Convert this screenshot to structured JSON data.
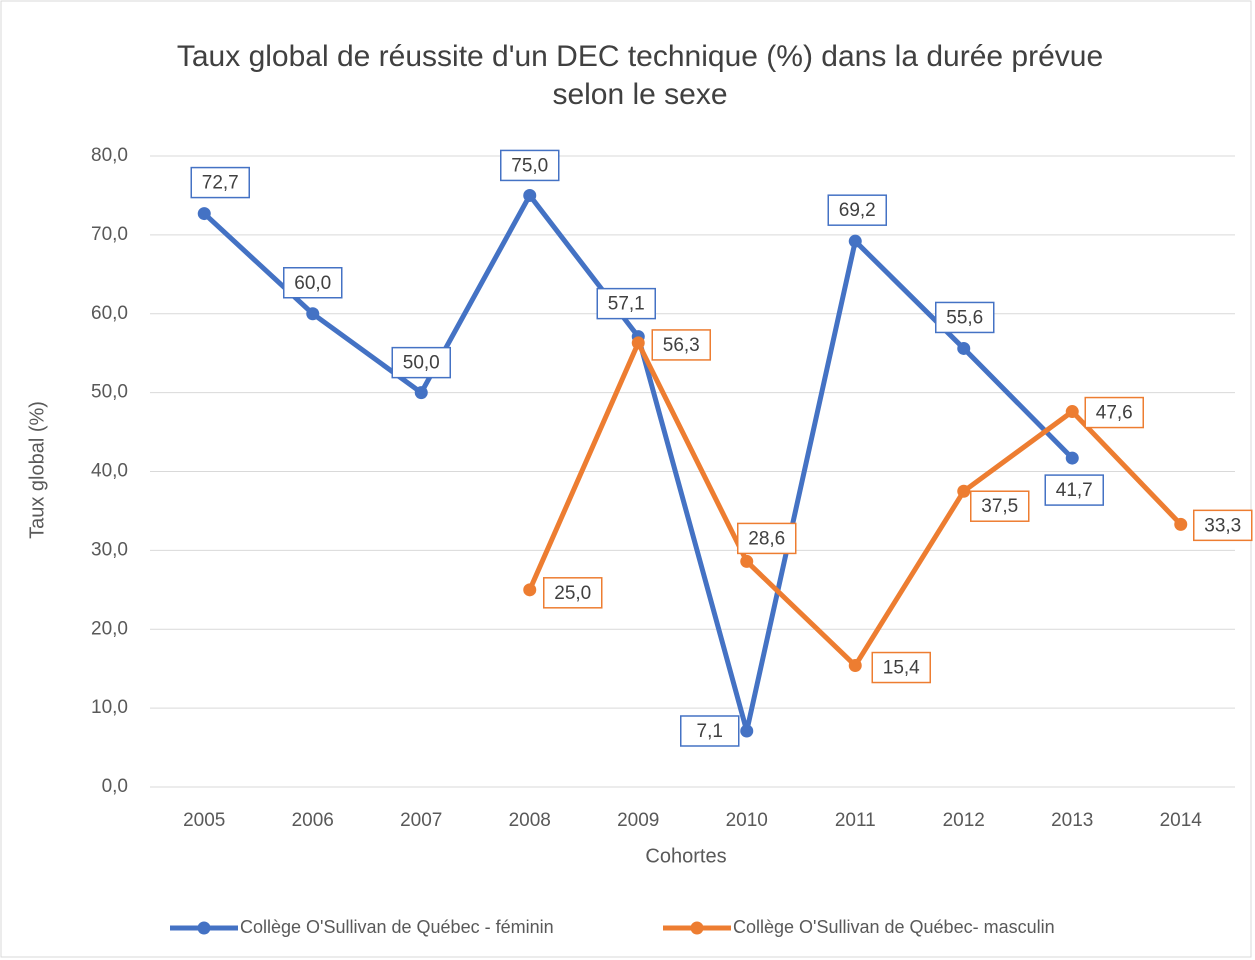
{
  "chart_data": {
    "type": "line",
    "title": "Taux global de réussite d'un DEC technique (%) dans la durée prévue selon le sexe",
    "xlabel": "Cohortes",
    "ylabel": "Taux global (%)",
    "categories": [
      "2005",
      "2006",
      "2007",
      "2008",
      "2009",
      "2010",
      "2011",
      "2012",
      "2013",
      "2014"
    ],
    "series": [
      {
        "name": "Collège O'Sullivan de Québec - féminin",
        "color": "#4472c4",
        "values": [
          72.7,
          60.0,
          50.0,
          75.0,
          57.1,
          7.1,
          69.2,
          55.6,
          41.7,
          null
        ],
        "value_labels": [
          "72,7",
          "60,0",
          "50,0",
          "75,0",
          "57,1",
          "7,1",
          "69,2",
          "55,6",
          "41,7",
          null
        ]
      },
      {
        "name": "Collège O'Sullivan de Québec- masculin",
        "color": "#ed7d31",
        "values": [
          null,
          null,
          null,
          25.0,
          56.3,
          28.6,
          15.4,
          37.5,
          47.6,
          33.3
        ],
        "value_labels": [
          null,
          null,
          null,
          "25,0",
          "56,3",
          "28,6",
          "15,4",
          "37,5",
          "47,6",
          "33,3"
        ]
      }
    ],
    "ylim": [
      0,
      80
    ],
    "yticks": [
      {
        "value": 0,
        "label": "0,0"
      },
      {
        "value": 10,
        "label": "10,0"
      },
      {
        "value": 20,
        "label": "20,0"
      },
      {
        "value": 30,
        "label": "30,0"
      },
      {
        "value": 40,
        "label": "40,0"
      },
      {
        "value": 50,
        "label": "50,0"
      },
      {
        "value": 60,
        "label": "60,0"
      },
      {
        "value": 70,
        "label": "70,0"
      },
      {
        "value": 80,
        "label": "80,0"
      }
    ],
    "grid": true,
    "legend": "bottom"
  }
}
